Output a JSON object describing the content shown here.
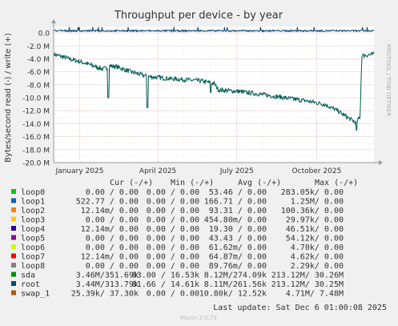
{
  "chart_data": {
    "type": "line",
    "title": "Throughput per device - by year",
    "ylabel": "Bytes/second read (-) / write (+)",
    "side_label": "RRDTOOL / TOBI OETIKER",
    "ylim": [
      -20000000,
      1000000
    ],
    "yticks": [
      {
        "value": 0,
        "label": "0.0"
      },
      {
        "value": -2000000,
        "label": "-2.0 M"
      },
      {
        "value": -4000000,
        "label": "-4.0 M"
      },
      {
        "value": -6000000,
        "label": "-6.0 M"
      },
      {
        "value": -8000000,
        "label": "-8.0 M"
      },
      {
        "value": -10000000,
        "label": "-10.0 M"
      },
      {
        "value": -12000000,
        "label": "-12.0 M"
      },
      {
        "value": -14000000,
        "label": "-14.0 M"
      },
      {
        "value": -16000000,
        "label": "-16.0 M"
      },
      {
        "value": -18000000,
        "label": "-18.0 M"
      },
      {
        "value": -20000000,
        "label": "-20.0 M"
      }
    ],
    "xlim": [
      "2024-12-02",
      "2025-12-06"
    ],
    "xticks": [
      {
        "date": "2025-01-01",
        "label": "January 2025"
      },
      {
        "date": "2025-04-01",
        "label": "April 2025"
      },
      {
        "date": "2025-07-01",
        "label": "July 2025"
      },
      {
        "date": "2025-10-01",
        "label": "October 2025"
      }
    ],
    "grid": true,
    "legend_columns": [
      "Cur (-/+)",
      "Min (-/+)",
      "Avg (-/+)",
      "Max (-/+)"
    ],
    "series": [
      {
        "name": "loop0",
        "color": "#00cc00",
        "cur": "0.00 /  0.00",
        "min": "0.00 /  0.00",
        "avg": "53.46 /  0.00",
        "max": "283.05k/  0.00"
      },
      {
        "name": "loop1",
        "color": "#0066b3",
        "cur": "522.77 /  0.00",
        "min": "0.00 /  0.00",
        "avg": "166.71 /  0.00",
        "max": "1.25M/  0.00"
      },
      {
        "name": "loop2",
        "color": "#ff8000",
        "cur": "12.14m/  0.00",
        "min": "0.00 /  0.00",
        "avg": "93.31 /  0.00",
        "max": "100.36k/  0.00"
      },
      {
        "name": "loop3",
        "color": "#ffcc00",
        "cur": "0.00 /  0.00",
        "min": "0.00 /  0.00",
        "avg": "454.80m/  0.00",
        "max": "29.97k/  0.00"
      },
      {
        "name": "loop4",
        "color": "#330099",
        "cur": "12.14m/  0.00",
        "min": "0.00 /  0.00",
        "avg": "19.30 /  0.00",
        "max": "46.51k/  0.00"
      },
      {
        "name": "loop5",
        "color": "#990099",
        "cur": "0.00 /  0.00",
        "min": "0.00 /  0.00",
        "avg": "43.43 /  0.00",
        "max": "54.12k/  0.00"
      },
      {
        "name": "loop6",
        "color": "#ccff00",
        "cur": "0.00 /  0.00",
        "min": "0.00 /  0.00",
        "avg": "61.62m/  0.00",
        "max": "4.70k/  0.00"
      },
      {
        "name": "loop7",
        "color": "#ff0000",
        "cur": "12.14m/  0.00",
        "min": "0.00 /  0.00",
        "avg": "64.87m/  0.00",
        "max": "4.62k/  0.00"
      },
      {
        "name": "loop8",
        "color": "#808080",
        "cur": "0.00 /  0.00",
        "min": "0.00 /  0.00",
        "avg": "89.76m/  0.00",
        "max": "2.29k/  0.00"
      },
      {
        "name": "sda",
        "color": "#008f00",
        "cur": "3.46M/351.69k",
        "min": "83.00 / 16.53k",
        "avg": "8.12M/274.09k",
        "max": "213.12M/ 30.26M"
      },
      {
        "name": "root",
        "color": "#00487d",
        "cur": "3.44M/313.79k",
        "min": "81.66 / 14.61k",
        "avg": "8.11M/261.56k",
        "max": "213.12M/ 30.25M"
      },
      {
        "name": "swap_1",
        "color": "#b35a00",
        "cur": "25.39k/ 37.30k",
        "min": "0.00 /  0.00",
        "avg": "10.80k/ 12.52k",
        "max": "4.71M/  7.48M"
      }
    ],
    "read_trend": [
      {
        "date": "2024-12-02",
        "value": -3300000
      },
      {
        "date": "2024-12-10",
        "value": -3600000
      },
      {
        "date": "2024-12-20",
        "value": -4000000
      },
      {
        "date": "2025-01-01",
        "value": -4400000
      },
      {
        "date": "2025-01-15",
        "value": -5000000
      },
      {
        "date": "2025-01-28",
        "value": -5600000
      },
      {
        "date": "2025-02-05",
        "value": -5100000
      },
      {
        "date": "2025-02-12",
        "value": -5200000
      },
      {
        "date": "2025-03-01",
        "value": -6000000
      },
      {
        "date": "2025-03-20",
        "value": -6700000
      },
      {
        "date": "2025-04-10",
        "value": -7000000
      },
      {
        "date": "2025-05-01",
        "value": -7200000
      },
      {
        "date": "2025-05-20",
        "value": -7400000
      },
      {
        "date": "2025-06-05",
        "value": -7800000
      },
      {
        "date": "2025-06-10",
        "value": -8800000
      },
      {
        "date": "2025-07-01",
        "value": -9000000
      },
      {
        "date": "2025-07-25",
        "value": -9400000
      },
      {
        "date": "2025-08-10",
        "value": -9700000
      },
      {
        "date": "2025-08-30",
        "value": -10100000
      },
      {
        "date": "2025-09-20",
        "value": -10500000
      },
      {
        "date": "2025-10-10",
        "value": -11000000
      },
      {
        "date": "2025-10-25",
        "value": -12000000
      },
      {
        "date": "2025-11-05",
        "value": -13000000
      },
      {
        "date": "2025-11-15",
        "value": -13800000
      },
      {
        "date": "2025-11-20",
        "value": -13000000
      },
      {
        "date": "2025-11-22",
        "value": -3500000
      },
      {
        "date": "2025-12-06",
        "value": -3300000
      }
    ],
    "read_spikes": [
      {
        "date": "2025-02-03",
        "value": -10000000
      },
      {
        "date": "2025-03-20",
        "value": -11500000
      },
      {
        "date": "2025-06-01",
        "value": -9200000
      },
      {
        "date": "2025-11-16",
        "value": -15000000
      }
    ],
    "write_trend_value": 200000
  },
  "footer": {
    "last_update": "Last update: Sat Dec  6 01:00:08 2025",
    "generator": "Munin 2.0.73"
  }
}
